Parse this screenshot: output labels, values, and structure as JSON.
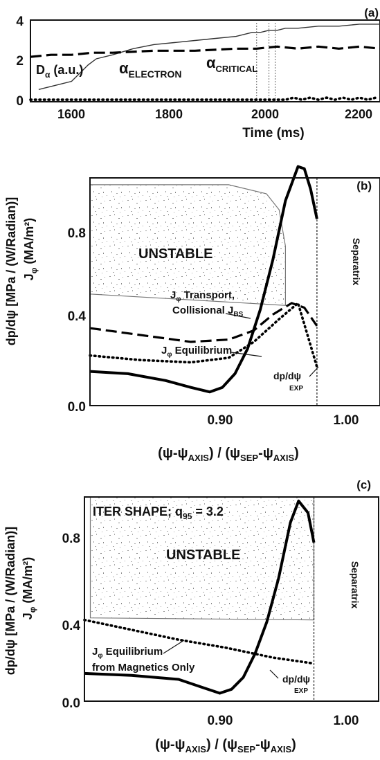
{
  "panels": {
    "a": {
      "label": "(a)",
      "xlabel": "Time (ms)",
      "x_ticks": [
        "1600",
        "1800",
        "2000",
        "2200"
      ],
      "y_ticks": [
        "0",
        "2",
        "4"
      ],
      "annotations": {
        "d_alpha": {
          "main": "D",
          "sub": "α",
          "rest": " (a.u.)"
        },
        "alpha_electron": {
          "main": "α",
          "sub": "ELECTRON"
        },
        "alpha_critical": {
          "main": "α",
          "sub": "CRITICAL"
        }
      }
    },
    "b": {
      "label": "(b)",
      "ylabel": {
        "jphi": "J",
        "jphi_sub": "φ",
        "jphi_unit": " (MA/m²)",
        "dpdpsi": "dp/dψ [MPa / (W/Radian)]"
      },
      "y_ticks": [
        "0.0",
        "0.4",
        "0.8"
      ],
      "x_ticks": [
        "0.90",
        "1.00"
      ],
      "xlabel": "(ψ-ψAXIS) / (ψSEP-ψAXIS)",
      "region_label": "UNSTABLE",
      "separatrix": "Separatrix",
      "annotations": {
        "transport_1": "J",
        "transport_1b": "φ",
        "transport_1c": " Transport,",
        "transport_2a": "Collisional J",
        "transport_2b": "BS",
        "equilibrium_a": "J",
        "equilibrium_b": "φ",
        "equilibrium_c": " Equilibrium",
        "dpdpsi_a": "dp/dψ",
        "dpdpsi_b": "EXP"
      }
    },
    "c": {
      "label": "(c)",
      "ylabel": {
        "jphi": "J",
        "jphi_sub": "φ",
        "jphi_unit": " (MA/m²)",
        "dpdpsi": "dp/dψ [MPa / (W/Radian)]"
      },
      "y_ticks": [
        "0.0",
        "0.4",
        "0.8"
      ],
      "x_ticks": [
        "0.90",
        "1.00"
      ],
      "xlabel": "(ψ-ψAXIS) / (ψSEP-ψAXIS)",
      "shape_label": {
        "a": "ITER SHAPE; q",
        "b": "95",
        "c": " = 3.2"
      },
      "region_label": "UNSTABLE",
      "separatrix": "Separatrix",
      "annotations": {
        "equilibrium_a": "J",
        "equilibrium_b": "φ",
        "equilibrium_c": " Equilibrium",
        "equilibrium_2": "from Magnetics Only",
        "dpdpsi_a": "dp/dψ",
        "dpdpsi_b": "EXP"
      }
    }
  },
  "chart_data": [
    {
      "panel": "a",
      "type": "line",
      "xlabel": "Time (ms)",
      "xlim": [
        1500,
        2350
      ],
      "ylim": [
        0,
        4
      ],
      "series": [
        {
          "name": "α ELECTRON",
          "style": "solid-thin",
          "x": [
            1520,
            1560,
            1600,
            1620,
            1640,
            1660,
            1700,
            1750,
            1800,
            1850,
            1900,
            1950,
            2000,
            2040,
            2060,
            2080,
            2100,
            2120,
            2150,
            2200,
            2250,
            2300,
            2350
          ],
          "y": [
            0.6,
            0.8,
            1.0,
            1.4,
            1.8,
            2.1,
            2.3,
            2.6,
            2.8,
            2.9,
            3.0,
            3.1,
            3.2,
            3.4,
            3.4,
            3.5,
            3.5,
            3.6,
            3.6,
            3.7,
            3.7,
            3.8,
            3.8
          ]
        },
        {
          "name": "α CRITICAL",
          "style": "dashed",
          "x": [
            1500,
            1550,
            1600,
            1650,
            1700,
            1800,
            1900,
            2000,
            2050,
            2100,
            2150,
            2200,
            2250,
            2300,
            2350
          ],
          "y": [
            2.2,
            2.3,
            2.3,
            2.4,
            2.4,
            2.5,
            2.5,
            2.6,
            2.6,
            2.7,
            2.6,
            2.7,
            2.6,
            2.7,
            2.6
          ]
        },
        {
          "name": "D α (a.u.)",
          "style": "dotted",
          "x": [
            1500,
            1600,
            1700,
            1800,
            1900,
            2000,
            2100,
            2120,
            2140,
            2160,
            2180,
            2200,
            2220,
            2240,
            2260,
            2280,
            2300,
            2320,
            2340
          ],
          "y": [
            0.1,
            0.1,
            0.1,
            0.1,
            0.1,
            0.1,
            0.1,
            0.1,
            0.2,
            0.1,
            0.2,
            0.1,
            0.2,
            0.1,
            0.2,
            0.1,
            0.2,
            0.1,
            0.2
          ]
        }
      ]
    },
    {
      "panel": "b",
      "type": "line",
      "xlim": [
        0.82,
        1.05
      ],
      "ylim": [
        0,
        1.0
      ],
      "unstable_region": {
        "x": [
          0.82,
          0.82,
          0.88,
          0.93,
          0.96,
          0.97,
          0.975,
          0.975,
          0.82
        ],
        "y": [
          0.49,
          0.97,
          0.97,
          0.97,
          0.93,
          0.86,
          0.7,
          0.44,
          0.49
        ]
      },
      "separatrix_x": 1.0,
      "series": [
        {
          "name": "dp/dψ EXP",
          "style": "solid-thick",
          "x": [
            0.82,
            0.85,
            0.88,
            0.9,
            0.915,
            0.925,
            0.935,
            0.945,
            0.955,
            0.965,
            0.975,
            0.985,
            0.99,
            0.995,
            1.0
          ],
          "y": [
            0.15,
            0.14,
            0.11,
            0.08,
            0.06,
            0.08,
            0.14,
            0.25,
            0.42,
            0.64,
            0.9,
            1.05,
            1.04,
            0.95,
            0.82
          ]
        },
        {
          "name": "Jφ Transport, Collisional JBS",
          "style": "dashed",
          "x": [
            0.82,
            0.86,
            0.9,
            0.93,
            0.95,
            0.965,
            0.98,
            0.99,
            1.0
          ],
          "y": [
            0.34,
            0.31,
            0.28,
            0.29,
            0.33,
            0.4,
            0.45,
            0.43,
            0.35
          ]
        },
        {
          "name": "Jφ Equilibrium",
          "style": "dotted",
          "x": [
            0.82,
            0.86,
            0.9,
            0.93,
            0.95,
            0.97,
            0.985,
            0.992,
            1.0
          ],
          "y": [
            0.22,
            0.2,
            0.19,
            0.21,
            0.28,
            0.38,
            0.45,
            0.32,
            0.17
          ]
        }
      ]
    },
    {
      "panel": "c",
      "type": "line",
      "xlim": [
        0.8,
        1.05
      ],
      "ylim": [
        0,
        1.03
      ],
      "unstable_region": {
        "x": [
          0.805,
          0.805,
          0.995,
          0.995,
          0.805
        ],
        "y": [
          0.49,
          1.03,
          1.03,
          0.41,
          0.42
        ]
      },
      "separatrix_x": 0.995,
      "series": [
        {
          "name": "dp/dψ EXP",
          "style": "solid-thick",
          "x": [
            0.8,
            0.84,
            0.88,
            0.9,
            0.915,
            0.925,
            0.935,
            0.945,
            0.955,
            0.965,
            0.975,
            0.982,
            0.99,
            0.995
          ],
          "y": [
            0.14,
            0.13,
            0.11,
            0.07,
            0.04,
            0.06,
            0.12,
            0.24,
            0.4,
            0.62,
            0.9,
            1.01,
            0.95,
            0.8
          ]
        },
        {
          "name": "Jφ Equilibrium from Magnetics Only",
          "style": "dotted",
          "x": [
            0.8,
            0.84,
            0.88,
            0.92,
            0.96,
            0.995
          ],
          "y": [
            0.41,
            0.36,
            0.31,
            0.27,
            0.22,
            0.19
          ]
        }
      ]
    }
  ]
}
